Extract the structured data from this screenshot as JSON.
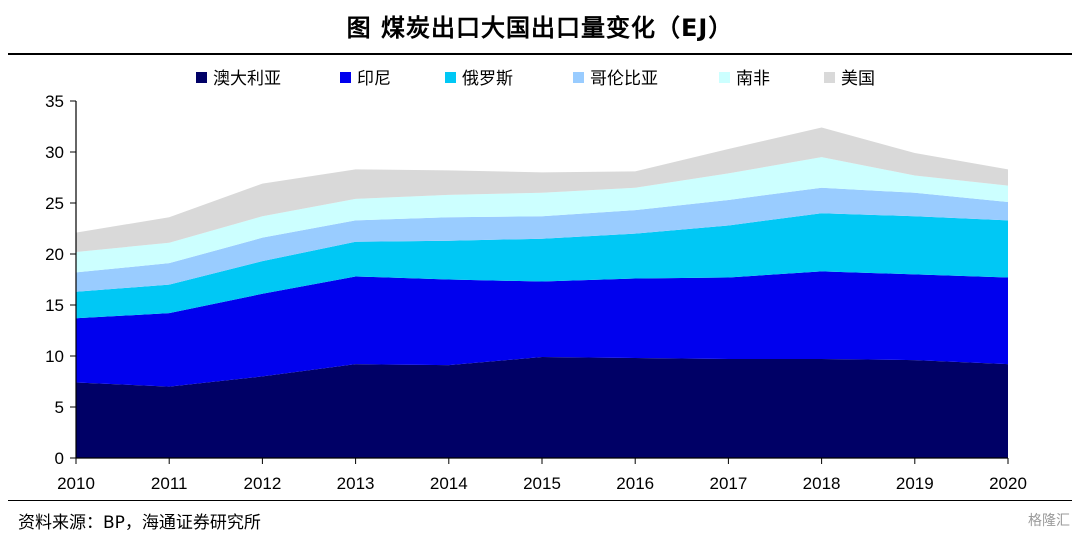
{
  "title": "图  煤炭出口大国出口量变化（EJ）",
  "source": "资料来源：BP，海通证券研究所",
  "watermark": "格隆汇",
  "chart_data": {
    "type": "area",
    "stacked": true,
    "title": "图  煤炭出口大国出口量变化（EJ）",
    "xlabel": "",
    "ylabel": "",
    "x": [
      "2010",
      "2011",
      "2012",
      "2013",
      "2014",
      "2015",
      "2016",
      "2017",
      "2018",
      "2019",
      "2020"
    ],
    "ylim": [
      0,
      35
    ],
    "yticks": [
      "0",
      "5",
      "10",
      "15",
      "20",
      "25",
      "30",
      "35"
    ],
    "legend_position": "top",
    "series": [
      {
        "name": "澳大利亚",
        "color": "#000066",
        "values": [
          7.4,
          7.0,
          8.0,
          9.2,
          9.1,
          9.9,
          9.8,
          9.7,
          9.7,
          9.6,
          9.2
        ]
      },
      {
        "name": "印尼",
        "color": "#0000ee",
        "values": [
          6.3,
          7.2,
          8.1,
          8.6,
          8.4,
          7.4,
          7.8,
          8.0,
          8.6,
          8.4,
          8.5
        ]
      },
      {
        "name": "俄罗斯",
        "color": "#00c8f5",
        "values": [
          2.6,
          2.8,
          3.2,
          3.4,
          3.8,
          4.2,
          4.4,
          5.1,
          5.7,
          5.7,
          5.6
        ]
      },
      {
        "name": "哥伦比亚",
        "color": "#99ccff",
        "values": [
          1.9,
          2.1,
          2.3,
          2.1,
          2.3,
          2.2,
          2.3,
          2.5,
          2.5,
          2.3,
          1.8
        ]
      },
      {
        "name": "南非",
        "color": "#ccffff",
        "values": [
          2.0,
          2.0,
          2.1,
          2.1,
          2.2,
          2.3,
          2.2,
          2.6,
          3.0,
          1.7,
          1.6
        ]
      },
      {
        "name": "美国",
        "color": "#d9d9d9",
        "values": [
          1.9,
          2.5,
          3.2,
          2.9,
          2.4,
          2.0,
          1.6,
          2.4,
          2.9,
          2.2,
          1.6
        ]
      }
    ]
  }
}
